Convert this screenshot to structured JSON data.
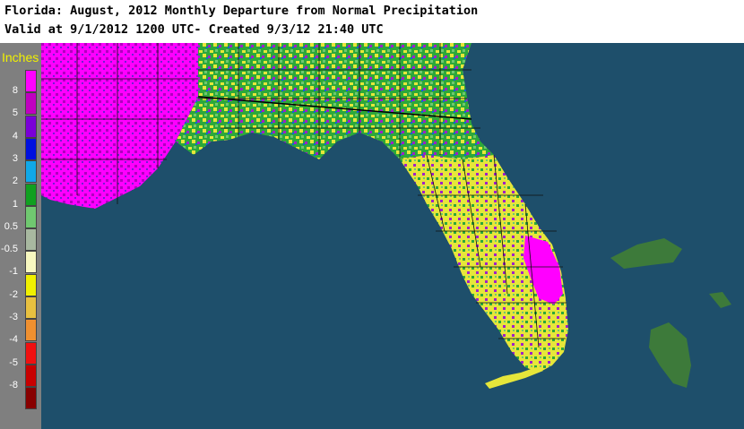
{
  "header": {
    "line1": "Florida: August, 2012 Monthly Departure from Normal Precipitation",
    "line2": "Valid at 9/1/2012 1200 UTC- Created 9/3/12 21:40 UTC"
  },
  "legend": {
    "title": "Inches",
    "items": [
      {
        "label": "8",
        "color": "#ff00ff"
      },
      {
        "label": "5",
        "color": "#c000c0"
      },
      {
        "label": "4",
        "color": "#7a00d8"
      },
      {
        "label": "3",
        "color": "#0010e0"
      },
      {
        "label": "2",
        "color": "#10a8e8"
      },
      {
        "label": "1",
        "color": "#10a020"
      },
      {
        "label": "0.5",
        "color": "#70c870"
      },
      {
        "label": "-0.5",
        "color": "#a8b8a0"
      },
      {
        "label": "-1",
        "color": "#f8f8c0"
      },
      {
        "label": "-2",
        "color": "#f0f000"
      },
      {
        "label": "-3",
        "color": "#e8c040"
      },
      {
        "label": "-4",
        "color": "#f09030"
      },
      {
        "label": "-5",
        "color": "#f01010"
      },
      {
        "label": "-8",
        "color": "#c80000"
      },
      {
        "label": "",
        "color": "#880000"
      }
    ]
  },
  "map": {
    "ocean_color": "#1e4f6b",
    "land_colors": {
      "wet": "#ff00ff",
      "wet2": "#b000c0",
      "moist": "#7020d0",
      "green": "#18a028",
      "yellow": "#e8e830",
      "gray": "#a8b8a0"
    }
  }
}
